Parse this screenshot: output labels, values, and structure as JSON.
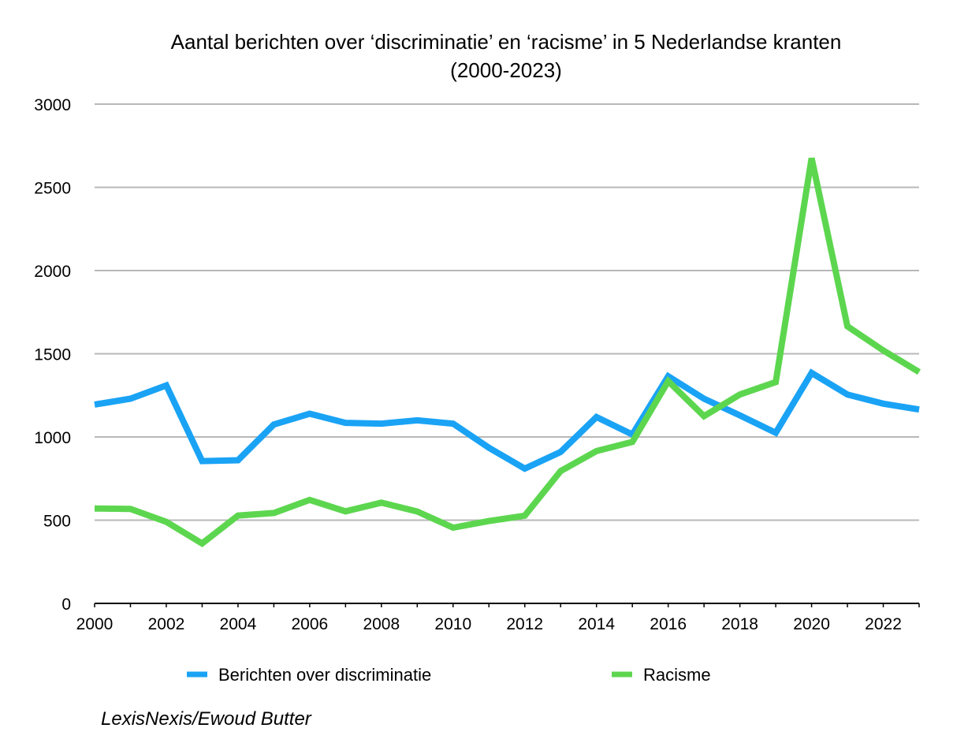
{
  "chart_data": {
    "type": "line",
    "title_line1": "Aantal berichten over ‘discriminatie’ en ‘racisme’ in 5 Nederlandse kranten",
    "title_line2": "(2000-2023)",
    "x": [
      2000,
      2001,
      2002,
      2003,
      2004,
      2005,
      2006,
      2007,
      2008,
      2009,
      2010,
      2011,
      2012,
      2013,
      2014,
      2015,
      2016,
      2017,
      2018,
      2019,
      2020,
      2021,
      2022,
      2023
    ],
    "x_tick_labels": [
      "2000",
      "2002",
      "2004",
      "2006",
      "2008",
      "2010",
      "2012",
      "2014",
      "2016",
      "2018",
      "2020",
      "2022"
    ],
    "y_tick_labels": [
      "0",
      "500",
      "1000",
      "1500",
      "2000",
      "2500",
      "3000"
    ],
    "ylim": [
      0,
      3000
    ],
    "grid": true,
    "legend_position": "bottom",
    "series": [
      {
        "name": "Berichten over discriminatie",
        "color": "#1aa3f5",
        "values": [
          1195,
          1230,
          1310,
          855,
          860,
          1075,
          1140,
          1085,
          1080,
          1100,
          1080,
          935,
          810,
          910,
          1120,
          1015,
          1365,
          1230,
          1130,
          1025,
          1385,
          1255,
          1200,
          1165
        ]
      },
      {
        "name": "Racisme",
        "color": "#5dd64f",
        "values": [
          570,
          568,
          490,
          360,
          528,
          543,
          622,
          553,
          605,
          552,
          455,
          495,
          527,
          795,
          915,
          970,
          1335,
          1125,
          1255,
          1330,
          2675,
          1665,
          1520,
          1390
        ]
      }
    ]
  },
  "source": "LexisNexis/Ewoud Butter"
}
